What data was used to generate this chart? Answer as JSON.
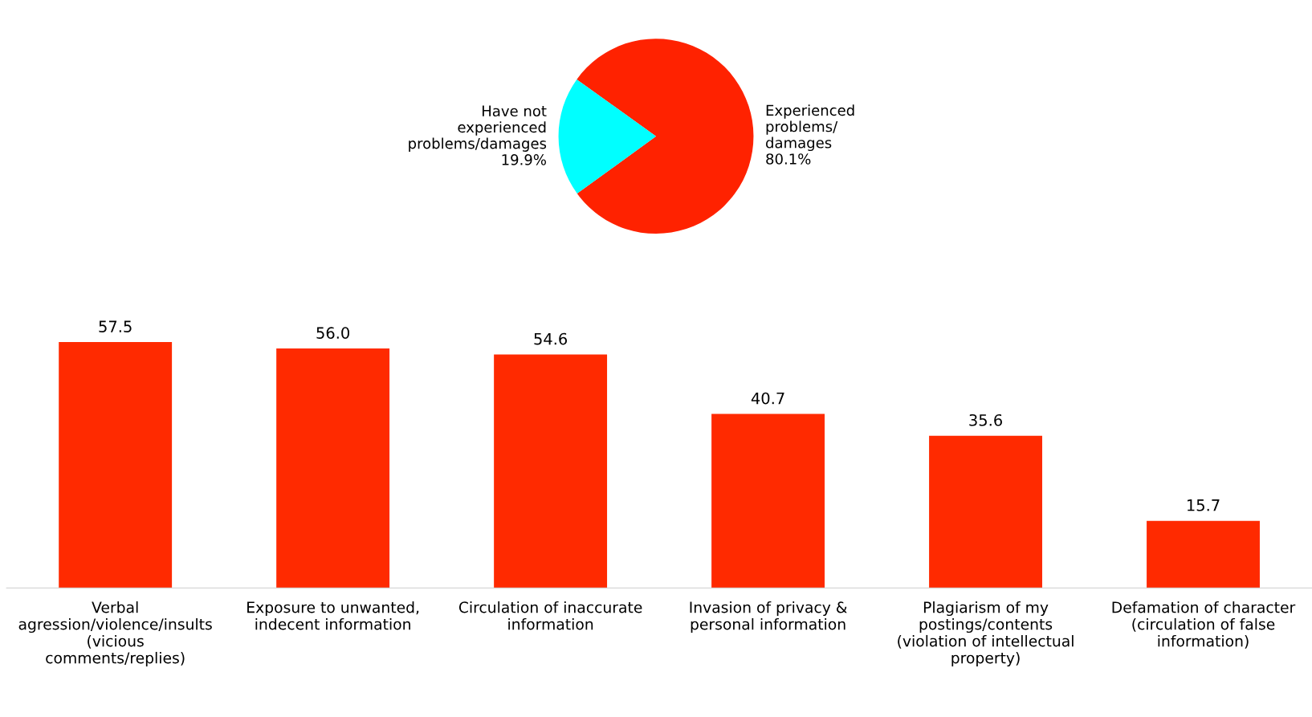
{
  "chart_data": [
    {
      "type": "pie",
      "categories": [
        "Experienced\nproblems/\ndamages",
        "Have not\nexperienced\nproblems/damages"
      ],
      "values": [
        80.1,
        19.9
      ],
      "colors": [
        "#ff2200",
        "#00ffff"
      ],
      "value_labels": [
        "80.1%",
        "19.9%"
      ]
    },
    {
      "type": "bar",
      "categories": [
        "Verbal\nagression/violence/insults\n(vicious\ncomments/replies)",
        "Exposure to unwanted,\nindecent information",
        "Circulation of inaccurate\ninformation",
        "Invasion of privacy &\npersonal information",
        "Plagiarism of my\npostings/contents\n(violation of intellectual\nproperty)",
        "Defamation of character\n(circulation of false\ninformation)"
      ],
      "values": [
        57.5,
        56.0,
        54.6,
        40.7,
        35.6,
        15.7
      ],
      "color": "#ff2a00",
      "value_labels": [
        "57.5",
        "56.0",
        "54.6",
        "40.7",
        "35.6",
        "15.7"
      ]
    }
  ]
}
